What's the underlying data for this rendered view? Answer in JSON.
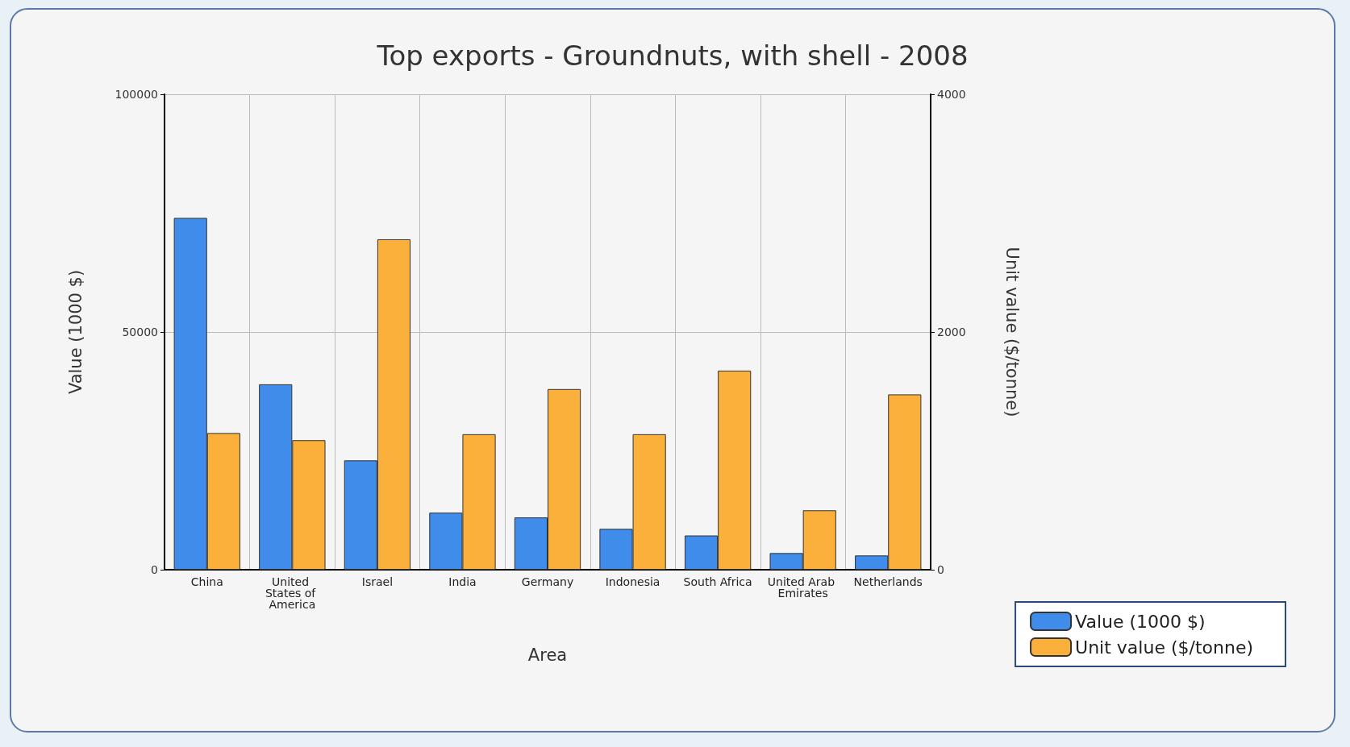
{
  "chart_data": {
    "type": "bar",
    "title": "Top exports - Groundnuts, with shell - 2008",
    "xlabel": "Area",
    "ylabel": "Value (1000 $)",
    "y2label": "Unit value ($/tonne)",
    "categories": [
      "China",
      "United States of America",
      "Israel",
      "India",
      "Germany",
      "Indonesia",
      "South Africa",
      "United Arab Emirates",
      "Netherlands"
    ],
    "series": [
      {
        "name": "Value (1000 $)",
        "color": "#3f8ceb",
        "values": [
          74000,
          39000,
          23000,
          12000,
          11000,
          8600,
          7200,
          3500,
          3000
        ]
      },
      {
        "name": "Unit value ($/tonne)",
        "color": "#fbb03b",
        "axis": "y2",
        "values": [
          1150,
          1090,
          2780,
          1140,
          1520,
          1140,
          1675,
          500,
          1475
        ]
      }
    ],
    "ylim": [
      0,
      100000
    ],
    "yticks": [
      0,
      50000,
      100000
    ],
    "y2lim": [
      0,
      4000
    ],
    "y2ticks": [
      0,
      2000,
      4000
    ],
    "grid": true,
    "legend": "bottom right"
  }
}
